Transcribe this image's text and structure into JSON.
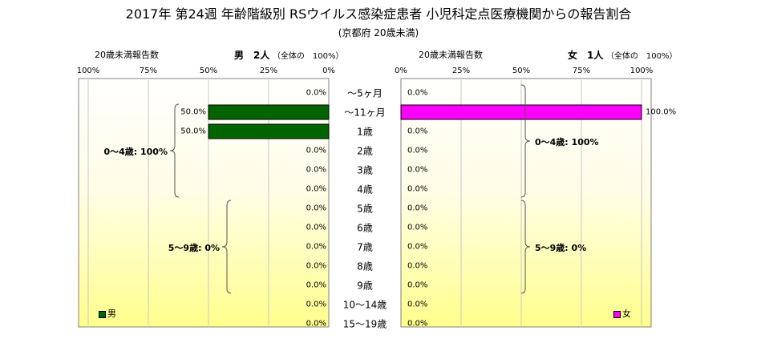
{
  "chart_data": {
    "type": "bar",
    "title": "2017年 第24週 年齢階級別 RSウイルス感染症患者 小児科定点医療機関からの報告割合",
    "subtitle": "(京都府 20歳未満)",
    "categories": [
      "～5ヶ月",
      "～11ヶ月",
      "1歳",
      "2歳",
      "3歳",
      "4歳",
      "5歳",
      "6歳",
      "7歳",
      "8歳",
      "9歳",
      "10～14歳",
      "15～19歳"
    ],
    "ticks": [
      "100%",
      "75%",
      "50%",
      "25%",
      "0%"
    ],
    "ticks_right": [
      "0%",
      "25%",
      "50%",
      "75%",
      "100%"
    ],
    "xlim": [
      0,
      100
    ],
    "grid": true,
    "panels": [
      {
        "side": "left",
        "axis_label": "20歳未満報告数",
        "series_name": "男",
        "count_label": "男　2人",
        "count_note": "（全体の　100%）",
        "color": "#006400",
        "values": [
          0,
          50,
          50,
          0,
          0,
          0,
          0,
          0,
          0,
          0,
          0,
          0,
          0
        ],
        "value_labels": [
          "0.0%",
          "50.0%",
          "50.0%",
          "0.0%",
          "0.0%",
          "0.0%",
          "0.0%",
          "0.0%",
          "0.0%",
          "0.0%",
          "0.0%",
          "0.0%",
          "0.0%"
        ],
        "groups": [
          {
            "label": "0～4歳: 100%",
            "from": 1,
            "to": 5
          },
          {
            "label": "5～9歳: 0%",
            "from": 6,
            "to": 10
          }
        ]
      },
      {
        "side": "right",
        "axis_label": "20歳未満報告数",
        "series_name": "女",
        "count_label": "女　1人",
        "count_note": "（全体の　100%）",
        "color": "#ff00ff",
        "values": [
          0,
          100,
          0,
          0,
          0,
          0,
          0,
          0,
          0,
          0,
          0,
          0,
          0
        ],
        "value_labels": [
          "0.0%",
          "100.0%",
          "0.0%",
          "0.0%",
          "0.0%",
          "0.0%",
          "0.0%",
          "0.0%",
          "0.0%",
          "0.0%",
          "0.0%",
          "0.0%",
          "0.0%"
        ],
        "groups": [
          {
            "label": "0～4歳: 100%",
            "from": 0,
            "to": 5
          },
          {
            "label": "5～9歳: 0%",
            "from": 6,
            "to": 10
          }
        ]
      }
    ]
  }
}
